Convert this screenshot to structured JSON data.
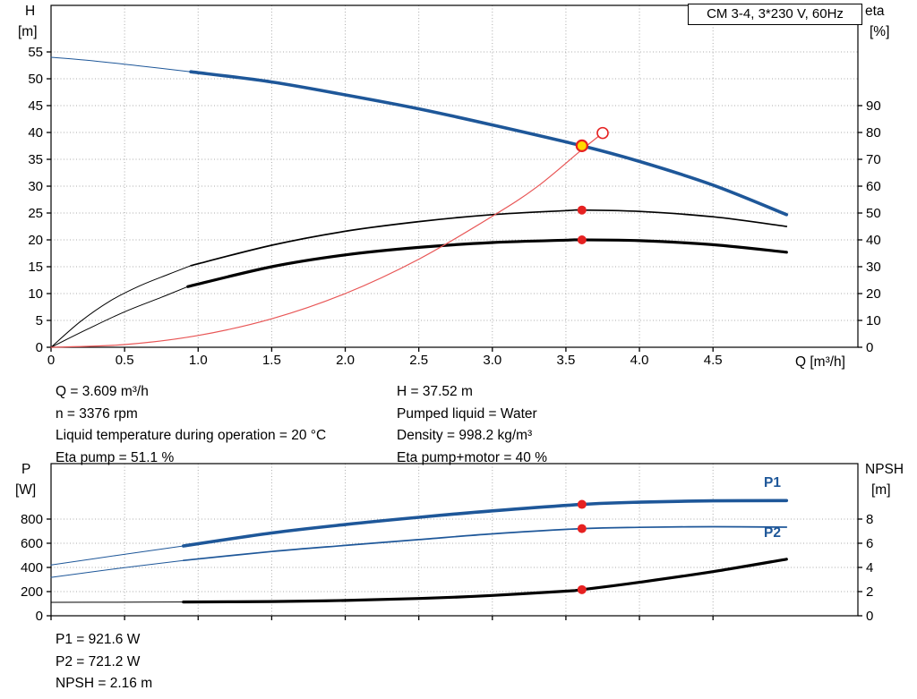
{
  "readout_top": {
    "left": [
      "Q = 3.609 m³/h",
      "n = 3376 rpm",
      "Liquid temperature during operation = 20 °C",
      "Eta pump = 51.1 %"
    ],
    "right": [
      "H = 37.52 m",
      "Pumped liquid = Water",
      "Density = 998.2 kg/m³",
      "Eta pump+motor = 40 %"
    ]
  },
  "readout_bottom": [
    "P1 = 921.6 W",
    "P2 = 721.2 W",
    "NPSH = 2.16 m"
  ],
  "colors": {
    "curve_blue": "#1e5799",
    "curve_red": "#e85555",
    "marker_red": "#e62121",
    "duty_yellow": "#ffd900"
  },
  "chart_data": [
    {
      "id": "hq-eta",
      "type": "line",
      "title": "CM 3-4, 3*230 V, 60Hz",
      "x_title": "Q [m³/h]",
      "y_left_title": "H",
      "y_left_unit": "[m]",
      "y_right_title": "eta",
      "y_right_unit": "[%]",
      "x_max": 5.485,
      "y_left_max": 63.67,
      "y_right_factor": 0.5,
      "show_x_labels": true,
      "x_ticks": [
        [
          0,
          "0"
        ],
        [
          0.5,
          "0.5"
        ],
        [
          1,
          "1.0"
        ],
        [
          1.5,
          "1.5"
        ],
        [
          2,
          "2.0"
        ],
        [
          2.5,
          "2.5"
        ],
        [
          3,
          "3.0"
        ],
        [
          3.5,
          "3.5"
        ],
        [
          4,
          "4.0"
        ],
        [
          4.5,
          "4.5"
        ]
      ],
      "y_left_ticks": [
        [
          0,
          "0"
        ],
        [
          5,
          "5"
        ],
        [
          10,
          "10"
        ],
        [
          15,
          "15"
        ],
        [
          20,
          "20"
        ],
        [
          25,
          "25"
        ],
        [
          30,
          "30"
        ],
        [
          35,
          "35"
        ],
        [
          40,
          "40"
        ],
        [
          45,
          "45"
        ],
        [
          50,
          "50"
        ],
        [
          55,
          "55"
        ]
      ],
      "y_right_ticks": [
        [
          0,
          "0"
        ],
        [
          10,
          "10"
        ],
        [
          20,
          "20"
        ],
        [
          30,
          "30"
        ],
        [
          40,
          "40"
        ],
        [
          50,
          "50"
        ],
        [
          60,
          "60"
        ],
        [
          70,
          "70"
        ],
        [
          80,
          "80"
        ],
        [
          90,
          "90"
        ]
      ],
      "series": [
        {
          "name": "head-lead",
          "color": "#1e5799",
          "width": 1,
          "points": [
            [
              0,
              54
            ],
            [
              0.3,
              53.3
            ],
            [
              0.6,
              52.4
            ],
            [
              0.95,
              51.3
            ]
          ]
        },
        {
          "name": "head",
          "color": "#1e5799",
          "width": 3.6,
          "points": [
            [
              0.95,
              51.3
            ],
            [
              1.5,
              49.4
            ],
            [
              2,
              47
            ],
            [
              2.5,
              44.4
            ],
            [
              3,
              41.4
            ],
            [
              3.609,
              37.52
            ],
            [
              4,
              34.6
            ],
            [
              4.5,
              30.2
            ],
            [
              5,
              24.7
            ]
          ]
        },
        {
          "name": "eta-pump-lead",
          "color": "#000000",
          "width": 1,
          "points": [
            [
              0,
              0
            ],
            [
              0.2,
              4.8
            ],
            [
              0.4,
              8.6
            ],
            [
              0.6,
              11.4
            ],
            [
              0.8,
              13.6
            ],
            [
              0.95,
              15.2
            ]
          ]
        },
        {
          "name": "eta-pump",
          "color": "#000000",
          "width": 1.7,
          "points": [
            [
              0.95,
              15.2
            ],
            [
              1.5,
              19
            ],
            [
              2,
              21.6
            ],
            [
              2.5,
              23.4
            ],
            [
              3,
              24.7
            ],
            [
              3.5,
              25.45
            ],
            [
              3.609,
              25.55
            ],
            [
              4,
              25.3
            ],
            [
              4.5,
              24.3
            ],
            [
              5,
              22.5
            ]
          ]
        },
        {
          "name": "eta-pump-motor-lead",
          "color": "#000000",
          "width": 1,
          "points": [
            [
              0,
              0
            ],
            [
              0.25,
              3.4
            ],
            [
              0.5,
              6.6
            ],
            [
              0.75,
              9.3
            ],
            [
              0.93,
              11.3
            ]
          ]
        },
        {
          "name": "eta-pump-motor",
          "color": "#000000",
          "width": 3.2,
          "points": [
            [
              0.93,
              11.3
            ],
            [
              1.5,
              15
            ],
            [
              2,
              17.2
            ],
            [
              2.5,
              18.6
            ],
            [
              3,
              19.5
            ],
            [
              3.5,
              19.95
            ],
            [
              3.609,
              20
            ],
            [
              4,
              19.85
            ],
            [
              4.5,
              19.1
            ],
            [
              5,
              17.7
            ]
          ]
        },
        {
          "name": "system-curve",
          "color": "#e85555",
          "width": 1.2,
          "points": [
            [
              0,
              0
            ],
            [
              0.5,
              0.5
            ],
            [
              1,
              2.2
            ],
            [
              1.5,
              5.3
            ],
            [
              2,
              10
            ],
            [
              2.5,
              16.4
            ],
            [
              3,
              24.4
            ],
            [
              3.3,
              29.8
            ],
            [
              3.609,
              36.8
            ],
            [
              3.75,
              39.9
            ]
          ]
        }
      ],
      "markers": [
        {
          "name": "requested-duty-marker",
          "x": 3.75,
          "y": 39.9,
          "r": 6,
          "fill": "#ffffff",
          "stroke": "#e62121",
          "stroke_width": 1.6
        },
        {
          "name": "duty-point-marker",
          "x": 3.609,
          "y": 37.52,
          "r": 6,
          "fill": "#ffd900",
          "stroke": "#e62121",
          "stroke_width": 2.2
        },
        {
          "name": "eta-pump-marker",
          "x": 3.609,
          "y": 25.55,
          "r": 5,
          "fill": "#e62121"
        },
        {
          "name": "eta-pump-motor-marker",
          "x": 3.609,
          "y": 20,
          "r": 5,
          "fill": "#e62121"
        }
      ]
    },
    {
      "id": "power-npsh",
      "type": "line",
      "title": "",
      "x_title": "",
      "y_left_title": "P",
      "y_left_unit": "[W]",
      "y_right_title": "NPSH",
      "y_right_unit": "[m]",
      "x_max": 5.485,
      "y_left_max": 1259,
      "y_right_factor": 100,
      "show_x_labels": false,
      "x_ticks": [
        [
          0,
          "0"
        ],
        [
          0.5,
          "0.5"
        ],
        [
          1,
          "1.0"
        ],
        [
          1.5,
          "1.5"
        ],
        [
          2,
          "2.0"
        ],
        [
          2.5,
          "2.5"
        ],
        [
          3,
          "3.0"
        ],
        [
          3.5,
          "3.5"
        ],
        [
          4,
          "4.0"
        ],
        [
          4.5,
          "4.5"
        ]
      ],
      "y_left_ticks": [
        [
          0,
          "0"
        ],
        [
          200,
          "200"
        ],
        [
          400,
          "400"
        ],
        [
          600,
          "600"
        ],
        [
          800,
          "800"
        ]
      ],
      "y_right_ticks": [
        [
          0,
          "0"
        ],
        [
          2,
          "2"
        ],
        [
          4,
          "4"
        ],
        [
          6,
          "6"
        ],
        [
          8,
          "8"
        ]
      ],
      "curve_labels": [
        {
          "text": "P1"
        },
        {
          "text": "P2"
        }
      ],
      "series": [
        {
          "name": "p1-lead",
          "color": "#1e5799",
          "width": 1,
          "points": [
            [
              0,
              420
            ],
            [
              0.45,
              500
            ],
            [
              0.9,
              578
            ]
          ]
        },
        {
          "name": "p1",
          "color": "#1e5799",
          "width": 3.6,
          "points": [
            [
              0.9,
              578
            ],
            [
              1.5,
              685
            ],
            [
              2,
              755
            ],
            [
              2.5,
              815
            ],
            [
              3,
              868
            ],
            [
              3.609,
              921.6
            ],
            [
              4,
              940
            ],
            [
              4.5,
              951
            ],
            [
              5,
              953
            ]
          ]
        },
        {
          "name": "p2-lead",
          "color": "#1e5799",
          "width": 1,
          "points": [
            [
              0,
              318
            ],
            [
              0.45,
              390
            ],
            [
              0.9,
              458
            ]
          ]
        },
        {
          "name": "p2",
          "color": "#1e5799",
          "width": 1.7,
          "points": [
            [
              0.9,
              458
            ],
            [
              1.5,
              532
            ],
            [
              2,
              582
            ],
            [
              2.5,
              630
            ],
            [
              3,
              678
            ],
            [
              3.609,
              721.2
            ],
            [
              4,
              732
            ],
            [
              4.5,
              737
            ],
            [
              5,
              733
            ]
          ]
        },
        {
          "name": "npsh-lead",
          "color": "#000000",
          "width": 1,
          "points": [
            [
              0,
              111
            ],
            [
              0.45,
              112
            ],
            [
              0.9,
              114
            ]
          ]
        },
        {
          "name": "npsh",
          "color": "#000000",
          "width": 3.2,
          "points": [
            [
              0.9,
              114
            ],
            [
              1.5,
              118
            ],
            [
              2,
              127
            ],
            [
              2.5,
              143
            ],
            [
              3,
              168
            ],
            [
              3.5,
              204
            ],
            [
              3.609,
              216
            ],
            [
              4,
              277
            ],
            [
              4.5,
              365
            ],
            [
              5,
              468
            ]
          ]
        }
      ],
      "markers": [
        {
          "name": "p1-marker",
          "x": 3.609,
          "y": 921.6,
          "r": 5,
          "fill": "#e62121"
        },
        {
          "name": "p2-marker",
          "x": 3.609,
          "y": 721.2,
          "r": 5,
          "fill": "#e62121"
        },
        {
          "name": "npsh-marker",
          "x": 3.609,
          "y": 216,
          "r": 5,
          "fill": "#e62121"
        }
      ]
    }
  ]
}
